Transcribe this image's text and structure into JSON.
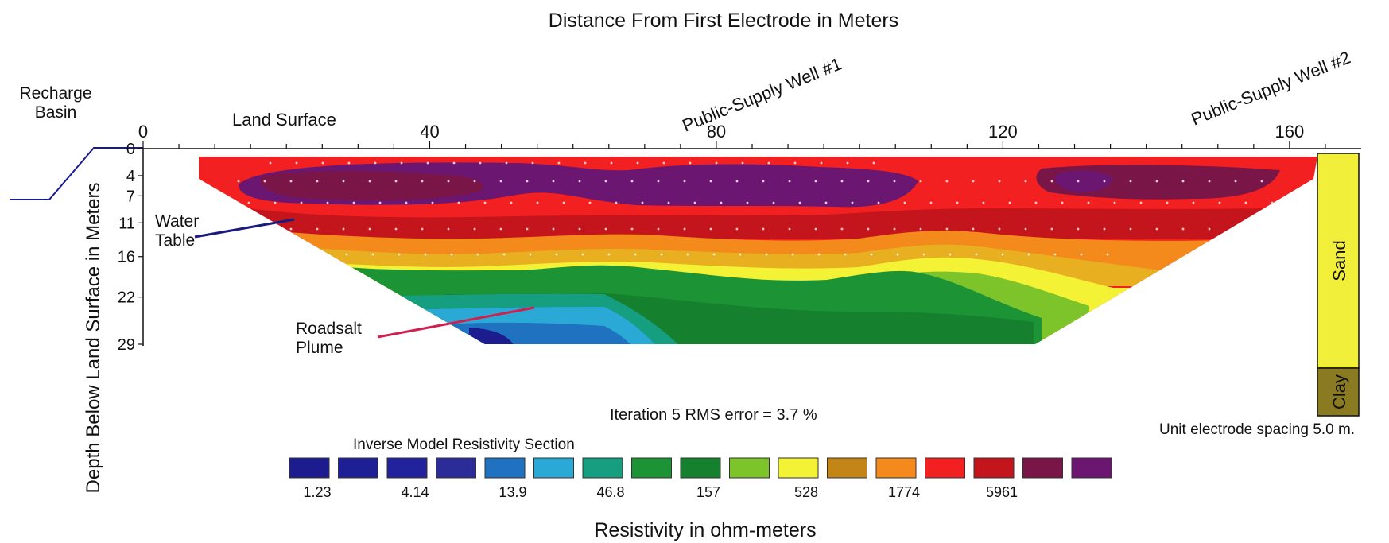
{
  "chart_data": {
    "type": "heatmap",
    "title": "Distance From First Electrode in Meters",
    "xlabel": "Distance From First Electrode in Meters",
    "ylabel": "Depth Below Land Surface in Meters",
    "x_range": [
      0,
      170
    ],
    "x_ticks": [
      0,
      40,
      80,
      120,
      160
    ],
    "x_tick_labels": [
      "0",
      "40",
      "80",
      "120",
      "160"
    ],
    "y_range": [
      0,
      29
    ],
    "y_ticks": [
      0,
      4,
      7,
      11,
      16,
      22,
      29
    ],
    "y_tick_labels": [
      "0",
      "4",
      "7",
      "11",
      "16",
      "22",
      "29"
    ],
    "y_inverted": true,
    "grid": false,
    "annotations": {
      "recharge_basin": "Recharge\nBasin",
      "land_surface": "Land Surface",
      "well_1": "Public-Supply Well #1",
      "well_2": "Public-Supply Well #2",
      "water_table": "Water\nTable",
      "roadsalt_plume": "Roadsalt\nPlume",
      "iteration": "Iteration 5 RMS error = 3.7 %",
      "electrode_spacing": "Unit electrode spacing 5.0 m."
    },
    "lithology_column": [
      {
        "label": "Sand",
        "color": "#f2ef3a"
      },
      {
        "label": "Clay",
        "color": "#8a7a22"
      }
    ],
    "legend": {
      "title": "Inverse Model Resistivity Section",
      "label": "Resistivity in ohm-meters",
      "colors": [
        "#1c1c8e",
        "#1f1f95",
        "#22229c",
        "#2c2c98",
        "#1f72c0",
        "#2ba9d6",
        "#169e80",
        "#1c9435",
        "#15812e",
        "#7cc42a",
        "#f4f234",
        "#c28516",
        "#f58a1c",
        "#f22020",
        "#c4141c",
        "#7a1548",
        "#6b1670"
      ],
      "tick_values": [
        "1.23",
        "4.14",
        "13.9",
        "46.8",
        "157",
        "528",
        "1774",
        "5961"
      ]
    },
    "colors": {
      "c_navy": "#1c1c8e",
      "c_blue": "#1f72c0",
      "c_cyan": "#2ba9d6",
      "c_teal": "#169e80",
      "c_green": "#1c9435",
      "c_dkgreen": "#15812e",
      "c_ltgreen": "#7cc42a",
      "c_yellow": "#f4f234",
      "c_tan": "#e8b020",
      "c_orange": "#f58a1c",
      "c_red": "#f22020",
      "c_crimson": "#c4141c",
      "c_maroon": "#7a1548",
      "c_purple": "#6b1670"
    }
  }
}
